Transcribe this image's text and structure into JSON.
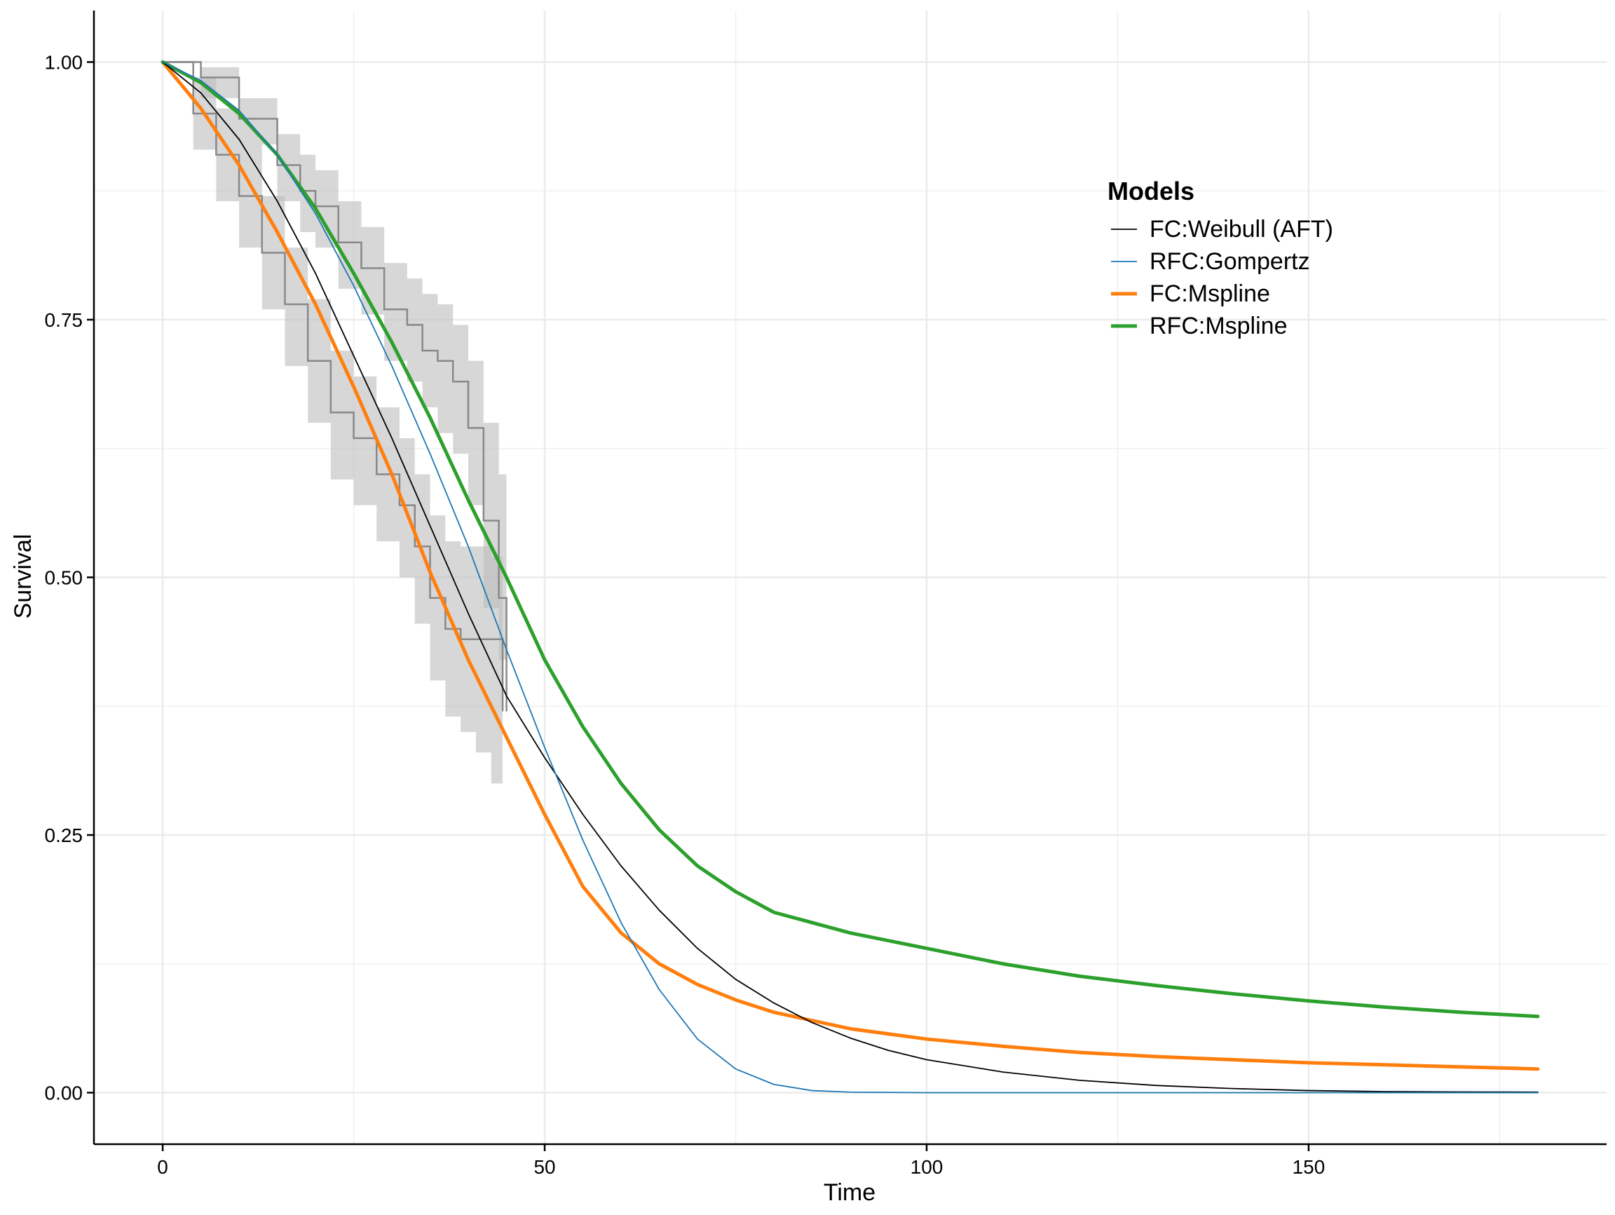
{
  "chart_data": {
    "type": "line",
    "title": "",
    "xlabel": "Time",
    "ylabel": "Survival",
    "xlim": [
      -9,
      189
    ],
    "ylim": [
      -0.05,
      1.05
    ],
    "x_ticks": [
      0,
      50,
      100,
      150
    ],
    "x_tick_labels": [
      "0",
      "50",
      "100",
      "150"
    ],
    "y_ticks": [
      0,
      0.25,
      0.5,
      0.75,
      1
    ],
    "y_tick_labels": [
      "0.00",
      "0.25",
      "0.50",
      "0.75",
      "1.00"
    ],
    "grid": true,
    "legend": {
      "title": "Models",
      "placement": "top-right"
    },
    "series": [
      {
        "name": "FC:Weibull (AFT)",
        "color": "#000000",
        "style": "thin",
        "x": [
          0,
          5,
          10,
          15,
          20,
          25,
          30,
          35,
          40,
          45,
          50,
          55,
          60,
          65,
          70,
          75,
          80,
          85,
          90,
          95,
          100,
          110,
          120,
          130,
          140,
          150,
          160,
          170,
          180
        ],
        "y": [
          1.0,
          0.97,
          0.925,
          0.865,
          0.795,
          0.715,
          0.635,
          0.55,
          0.465,
          0.385,
          0.325,
          0.27,
          0.22,
          0.177,
          0.14,
          0.11,
          0.087,
          0.068,
          0.053,
          0.041,
          0.032,
          0.02,
          0.012,
          0.007,
          0.004,
          0.002,
          0.001,
          0.0007,
          0.0005
        ]
      },
      {
        "name": "RFC:Gompertz",
        "color": "#1f77b4",
        "style": "thin",
        "x": [
          0,
          5,
          10,
          15,
          20,
          25,
          30,
          35,
          40,
          45,
          50,
          55,
          60,
          65,
          70,
          75,
          80,
          85,
          90,
          100,
          120,
          150,
          180
        ],
        "y": [
          1.0,
          0.982,
          0.953,
          0.91,
          0.853,
          0.783,
          0.705,
          0.62,
          0.53,
          0.43,
          0.335,
          0.245,
          0.165,
          0.1,
          0.052,
          0.023,
          0.008,
          0.002,
          0.0005,
          0.0,
          0.0,
          0.0,
          0.0
        ]
      },
      {
        "name": "FC:Mspline",
        "color": "#ff7f0e",
        "style": "thick",
        "x": [
          0,
          5,
          10,
          15,
          20,
          25,
          30,
          35,
          40,
          45,
          50,
          55,
          60,
          65,
          70,
          75,
          80,
          90,
          100,
          110,
          120,
          130,
          140,
          150,
          160,
          170,
          180
        ],
        "y": [
          1.0,
          0.955,
          0.9,
          0.835,
          0.765,
          0.685,
          0.6,
          0.505,
          0.42,
          0.345,
          0.27,
          0.2,
          0.155,
          0.125,
          0.105,
          0.09,
          0.078,
          0.062,
          0.052,
          0.045,
          0.039,
          0.035,
          0.032,
          0.029,
          0.027,
          0.025,
          0.023
        ]
      },
      {
        "name": "RFC:Mspline",
        "color": "#2ca02c",
        "style": "thick",
        "x": [
          0,
          5,
          10,
          15,
          20,
          25,
          30,
          35,
          40,
          45,
          50,
          55,
          60,
          65,
          70,
          75,
          80,
          90,
          100,
          110,
          120,
          130,
          140,
          150,
          160,
          170,
          180
        ],
        "y": [
          1.0,
          0.98,
          0.95,
          0.91,
          0.858,
          0.795,
          0.728,
          0.655,
          0.575,
          0.5,
          0.42,
          0.355,
          0.3,
          0.255,
          0.22,
          0.195,
          0.175,
          0.155,
          0.14,
          0.125,
          0.113,
          0.104,
          0.096,
          0.089,
          0.083,
          0.078,
          0.074
        ]
      }
    ],
    "km_curves": [
      {
        "name": "",
        "color": "#888888",
        "x": [
          0,
          4,
          7,
          10,
          13,
          16,
          19,
          22,
          25,
          28,
          31,
          33,
          35,
          37,
          39,
          41,
          43,
          44.5
        ],
        "y": [
          1.0,
          0.95,
          0.91,
          0.87,
          0.815,
          0.765,
          0.71,
          0.66,
          0.635,
          0.6,
          0.57,
          0.53,
          0.48,
          0.45,
          0.44,
          0.44,
          0.44,
          0.37
        ],
        "band_upper": [
          1.0,
          0.985,
          0.955,
          0.92,
          0.87,
          0.82,
          0.77,
          0.72,
          0.695,
          0.665,
          0.635,
          0.6,
          0.56,
          0.535,
          0.53,
          0.53,
          0.52,
          0.52
        ],
        "band_lower": [
          1.0,
          0.915,
          0.865,
          0.82,
          0.76,
          0.705,
          0.65,
          0.595,
          0.57,
          0.535,
          0.5,
          0.455,
          0.4,
          0.365,
          0.35,
          0.33,
          0.3,
          0.27
        ]
      },
      {
        "name": "",
        "color": "#888888",
        "x": [
          0,
          5,
          10,
          15,
          18,
          20,
          23,
          26,
          29,
          32,
          34,
          36,
          38,
          40,
          42,
          44,
          45
        ],
        "y": [
          1.0,
          0.985,
          0.945,
          0.9,
          0.875,
          0.86,
          0.825,
          0.8,
          0.76,
          0.745,
          0.72,
          0.71,
          0.69,
          0.645,
          0.555,
          0.48,
          0.37
        ],
        "band_upper": [
          1.0,
          0.995,
          0.965,
          0.93,
          0.91,
          0.895,
          0.865,
          0.84,
          0.805,
          0.79,
          0.775,
          0.765,
          0.745,
          0.71,
          0.65,
          0.6,
          0.6
        ],
        "band_lower": [
          1.0,
          0.965,
          0.92,
          0.865,
          0.835,
          0.82,
          0.78,
          0.755,
          0.71,
          0.69,
          0.665,
          0.64,
          0.62,
          0.57,
          0.47,
          0.42,
          0.4
        ]
      }
    ]
  }
}
